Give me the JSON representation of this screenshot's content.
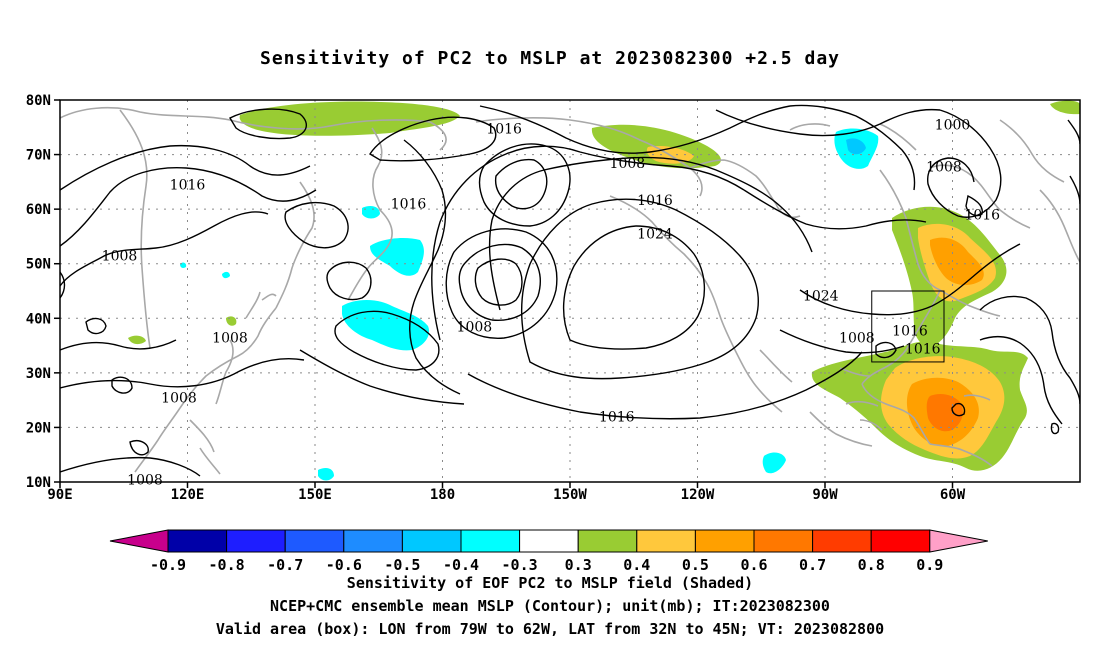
{
  "title": "Sensitivity of PC2 to MSLP at 2023082300 +2.5 day",
  "map": {
    "lat_labels": [
      "80N",
      "70N",
      "60N",
      "50N",
      "40N",
      "30N",
      "20N",
      "10N"
    ],
    "lon_labels": [
      "90E",
      "120E",
      "150E",
      "180",
      "150W",
      "120W",
      "90W",
      "60W"
    ],
    "contour_labels": [
      {
        "text": "1016",
        "lon": 194.5,
        "lat": 74.8
      },
      {
        "text": "1000",
        "lon": 300,
        "lat": 75.5
      },
      {
        "text": "1008",
        "lon": 223.5,
        "lat": 68.5
      },
      {
        "text": "1008",
        "lon": 298,
        "lat": 67.8
      },
      {
        "text": "1016",
        "lon": 120,
        "lat": 64.5
      },
      {
        "text": "1016",
        "lon": 172,
        "lat": 61
      },
      {
        "text": "1016",
        "lon": 230,
        "lat": 61.7
      },
      {
        "text": "1016",
        "lon": 307,
        "lat": 59
      },
      {
        "text": "1024",
        "lon": 230,
        "lat": 55.5
      },
      {
        "text": "1008",
        "lon": 104,
        "lat": 51.5
      },
      {
        "text": "1024",
        "lon": 269,
        "lat": 44.2
      },
      {
        "text": "1008",
        "lon": 187.5,
        "lat": 38.5
      },
      {
        "text": "1008",
        "lon": 130,
        "lat": 36.5
      },
      {
        "text": "1016",
        "lon": 290,
        "lat": 37.8
      },
      {
        "text": "1008",
        "lon": 277.5,
        "lat": 36.5
      },
      {
        "text": "1016",
        "lon": 293,
        "lat": 34.5
      },
      {
        "text": "1008",
        "lon": 118,
        "lat": 25.5
      },
      {
        "text": "1016",
        "lon": 221,
        "lat": 22
      },
      {
        "text": "1008",
        "lon": 110,
        "lat": 10.5
      }
    ],
    "valid_box": {
      "lon_min": 281,
      "lon_max": 298,
      "lat_min": 32,
      "lat_max": 45
    }
  },
  "colorbar": {
    "labels": [
      "-0.9",
      "-0.8",
      "-0.7",
      "-0.6",
      "-0.5",
      "-0.4",
      "-0.3",
      "0.3",
      "0.4",
      "0.5",
      "0.6",
      "0.7",
      "0.8",
      "0.9"
    ],
    "colors": {
      "lt_-0.9": "#c8008c",
      "-0.9_-0.8": "#0000a8",
      "-0.8_-0.7": "#1e1eff",
      "-0.7_-0.6": "#1e5aff",
      "-0.6_-0.5": "#1e8cff",
      "-0.5_-0.4": "#00c8ff",
      "-0.4_-0.3": "#00ffff",
      "-0.3_0.3": "#ffffff",
      "0.3_0.4": "#99cc33",
      "0.4_0.5": "#ffc83c",
      "0.5_0.6": "#ffa000",
      "0.6_0.7": "#ff7800",
      "0.7_0.8": "#ff3c00",
      "0.8_0.9": "#ff0000",
      "gt_0.9": "#ffa0c8"
    }
  },
  "caption": {
    "line1": "Sensitivity of EOF PC2 to MSLP field (Shaded)",
    "line2": "NCEP+CMC ensemble mean MSLP (Contour); unit(mb); IT:2023082300",
    "line3": "Valid area (box): LON from 79W to 62W, LAT from 32N to 45N; VT: 2023082800"
  }
}
